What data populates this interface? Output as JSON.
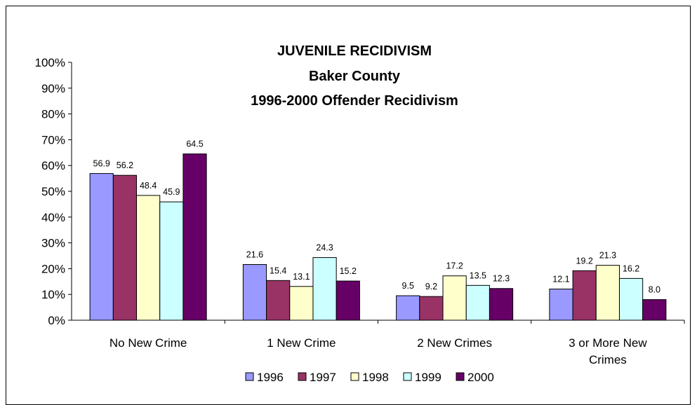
{
  "chart_data": {
    "type": "bar",
    "title": [
      "JUVENILE RECIDIVISM",
      "Baker County",
      "1996-2000 Offender Recidivism"
    ],
    "categories": [
      [
        "No New Crime"
      ],
      [
        "1 New Crime"
      ],
      [
        "2 New Crimes"
      ],
      [
        "3 or More New",
        "Crimes"
      ]
    ],
    "series": [
      {
        "name": "1996",
        "color": "#9999FF",
        "values": [
          56.9,
          21.6,
          9.5,
          12.1
        ]
      },
      {
        "name": "1997",
        "color": "#993366",
        "values": [
          56.2,
          15.4,
          9.2,
          19.2
        ]
      },
      {
        "name": "1998",
        "color": "#FFFFCC",
        "values": [
          48.4,
          13.1,
          17.2,
          21.3
        ]
      },
      {
        "name": "1999",
        "color": "#CCFFFF",
        "values": [
          45.9,
          24.3,
          13.5,
          16.2
        ]
      },
      {
        "name": "2000",
        "color": "#660066",
        "values": [
          64.5,
          15.2,
          12.3,
          8.0
        ]
      }
    ],
    "yticks": [
      "0%",
      "10%",
      "20%",
      "30%",
      "40%",
      "50%",
      "60%",
      "70%",
      "80%",
      "90%",
      "100%"
    ],
    "ylim": [
      0,
      100
    ],
    "grid": false,
    "legend_position": "bottom",
    "xlabel": "",
    "ylabel": ""
  }
}
